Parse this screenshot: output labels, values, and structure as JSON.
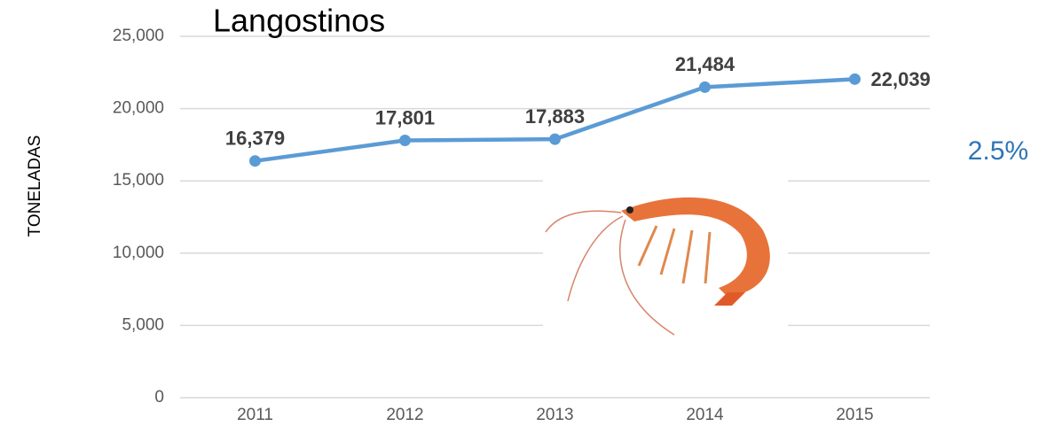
{
  "chart_data": {
    "type": "line",
    "title": "Langostinos",
    "y_label": "TONELADAS",
    "annotation": "2.5%",
    "categories": [
      "2011",
      "2012",
      "2013",
      "2014",
      "2015"
    ],
    "series": [
      {
        "name": "Langostinos",
        "color": "#5b9bd5",
        "values": [
          16379,
          17801,
          17883,
          21484,
          22039
        ],
        "value_labels": [
          "16,379",
          "17,801",
          "17,883",
          "21,484",
          "22,039"
        ]
      }
    ],
    "ylim": [
      0,
      25000
    ],
    "yticks": [
      0,
      {
        "value": 5000,
        "label": "5,000"
      },
      {
        "value": 10000,
        "label": "10,000"
      },
      {
        "value": 15000,
        "label": "15,000"
      },
      {
        "value": 20000,
        "label": "20,000"
      },
      {
        "value": 25000,
        "label": "25,000"
      }
    ],
    "grid": true,
    "annotation_color": "#2e75b6"
  }
}
